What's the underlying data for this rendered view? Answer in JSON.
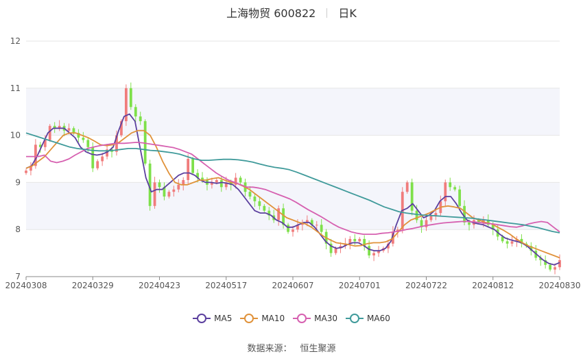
{
  "title": {
    "name": "上海物贸 600822",
    "period": "日K"
  },
  "legend": [
    {
      "name": "MA5",
      "color": "#5b3f9e"
    },
    {
      "name": "MA10",
      "color": "#e0923a"
    },
    {
      "name": "MA30",
      "color": "#d660b0"
    },
    {
      "name": "MA60",
      "color": "#3f9a9a"
    }
  ],
  "source": {
    "label": "数据来源：",
    "value": "恒生聚源"
  },
  "colors": {
    "up": "#f07c7c",
    "down": "#7ee04a",
    "band": "#f4f5fb",
    "grid": "#e6e6e6"
  },
  "chart_data": {
    "type": "candlestick",
    "ylim": [
      7,
      12
    ],
    "yticks": [
      7,
      8,
      9,
      10,
      11,
      12
    ],
    "xticks": [
      {
        "index": 0,
        "label": "20240308"
      },
      {
        "index": 14,
        "label": "20240329"
      },
      {
        "index": 28,
        "label": "20240423"
      },
      {
        "index": 42,
        "label": "20240517"
      },
      {
        "index": 56,
        "label": "20240607"
      },
      {
        "index": 70,
        "label": "20240701"
      },
      {
        "index": 84,
        "label": "20240722"
      },
      {
        "index": 98,
        "label": "20240812"
      },
      {
        "index": 112,
        "label": "20240830"
      }
    ],
    "closes": [
      9.25,
      9.35,
      9.8,
      9.75,
      9.9,
      10.2,
      10.15,
      10.2,
      10.1,
      10.15,
      10.05,
      9.95,
      9.9,
      9.75,
      9.3,
      9.45,
      9.55,
      9.7,
      9.65,
      10.0,
      10.3,
      11.0,
      10.6,
      10.4,
      10.3,
      9.4,
      8.5,
      9.0,
      8.9,
      8.7,
      8.8,
      8.85,
      8.95,
      9.05,
      9.5,
      9.2,
      9.1,
      9.05,
      8.95,
      9.0,
      9.05,
      8.9,
      9.0,
      8.95,
      9.1,
      9.0,
      8.8,
      8.7,
      8.6,
      8.5,
      8.4,
      8.3,
      8.2,
      8.45,
      8.1,
      7.95,
      8.0,
      8.1,
      8.15,
      8.2,
      8.1,
      8.1,
      7.95,
      7.7,
      7.5,
      7.6,
      7.65,
      7.7,
      7.8,
      7.75,
      7.8,
      7.65,
      7.45,
      7.5,
      7.55,
      7.6,
      7.7,
      7.95,
      8.0,
      8.8,
      9.0,
      8.4,
      8.2,
      8.05,
      8.2,
      8.3,
      8.35,
      8.6,
      9.0,
      8.9,
      8.85,
      8.5,
      8.15,
      8.1,
      8.2,
      8.15,
      8.2,
      8.1,
      8.0,
      7.85,
      7.75,
      7.7,
      7.75,
      7.8,
      7.7,
      7.65,
      7.55,
      7.4,
      7.35,
      7.25,
      7.15,
      7.2,
      7.35
    ],
    "ma": {
      "MA5": [
        9.3,
        9.35,
        9.55,
        9.8,
        10.05,
        10.15,
        10.15,
        10.15,
        10.05,
        9.95,
        9.75,
        9.65,
        9.6,
        9.58,
        9.6,
        9.65,
        9.75,
        10.1,
        10.4,
        10.45,
        10.3,
        9.7,
        9.1,
        8.8,
        8.85,
        8.85,
        8.95,
        9.05,
        9.15,
        9.2,
        9.2,
        9.15,
        9.05,
        9.0,
        9.0,
        8.98,
        9.0,
        8.98,
        8.95,
        8.85,
        8.7,
        8.55,
        8.4,
        8.35,
        8.35,
        8.3,
        8.2,
        8.15,
        8.05,
        8.05,
        8.1,
        8.15,
        8.15,
        8.05,
        7.9,
        7.75,
        7.65,
        7.6,
        7.62,
        7.68,
        7.72,
        7.72,
        7.66,
        7.58,
        7.55,
        7.55,
        7.6,
        7.75,
        8.1,
        8.4,
        8.45,
        8.55,
        8.4,
        8.25,
        8.3,
        8.4,
        8.6,
        8.7,
        8.7,
        8.55,
        8.35,
        8.2,
        8.15,
        8.12,
        8.1,
        8.05,
        8.0,
        7.9,
        7.82,
        7.78,
        7.75,
        7.72,
        7.65,
        7.55,
        7.45,
        7.35,
        7.28,
        7.25,
        7.3
      ],
      "MA10": [
        9.3,
        9.35,
        9.45,
        9.55,
        9.7,
        9.85,
        10.0,
        10.05,
        10.05,
        10.0,
        9.95,
        9.88,
        9.8,
        9.78,
        9.8,
        9.85,
        9.95,
        10.05,
        10.1,
        10.1,
        10.0,
        9.75,
        9.45,
        9.2,
        9.0,
        8.95,
        8.95,
        9.0,
        9.05,
        9.05,
        9.08,
        9.1,
        9.05,
        9.0,
        8.98,
        8.92,
        8.85,
        8.75,
        8.65,
        8.55,
        8.45,
        8.35,
        8.25,
        8.2,
        8.15,
        8.12,
        8.05,
        7.95,
        7.85,
        7.78,
        7.72,
        7.7,
        7.68,
        7.65,
        7.66,
        7.7,
        7.72,
        7.72,
        7.74,
        7.8,
        7.95,
        8.1,
        8.2,
        8.25,
        8.3,
        8.35,
        8.42,
        8.48,
        8.5,
        8.48,
        8.45,
        8.35,
        8.25,
        8.2,
        8.15,
        8.12,
        8.05,
        7.98,
        7.9,
        7.8,
        7.72,
        7.65,
        7.6,
        7.55,
        7.5,
        7.45,
        7.4
      ],
      "MA30": [
        9.55,
        9.55,
        9.55,
        9.58,
        9.45,
        9.42,
        9.45,
        9.5,
        9.58,
        9.65,
        9.72,
        9.75,
        9.78,
        9.8,
        9.82,
        9.83,
        9.83,
        9.84,
        9.85,
        9.84,
        9.82,
        9.8,
        9.78,
        9.76,
        9.74,
        9.7,
        9.65,
        9.6,
        9.5,
        9.4,
        9.3,
        9.2,
        9.12,
        9.05,
        9.0,
        8.95,
        8.9,
        8.9,
        8.88,
        8.85,
        8.8,
        8.75,
        8.7,
        8.65,
        8.58,
        8.5,
        8.42,
        8.35,
        8.28,
        8.2,
        8.12,
        8.05,
        8.0,
        7.95,
        7.92,
        7.9,
        7.9,
        7.9,
        7.92,
        7.93,
        7.95,
        7.97,
        8.0,
        8.02,
        8.05,
        8.08,
        8.1,
        8.12,
        8.14,
        8.15,
        8.16,
        8.17,
        8.17,
        8.16,
        8.15,
        8.13,
        8.12,
        8.1,
        8.08,
        8.06,
        8.05,
        8.08,
        8.12,
        8.15,
        8.17,
        8.15,
        8.05,
        7.95
      ],
      "MA60": [
        10.05,
        10.0,
        9.95,
        9.9,
        9.85,
        9.8,
        9.75,
        9.72,
        9.7,
        9.68,
        9.67,
        9.67,
        9.68,
        9.7,
        9.72,
        9.72,
        9.7,
        9.68,
        9.67,
        9.65,
        9.63,
        9.6,
        9.55,
        9.5,
        9.47,
        9.47,
        9.48,
        9.49,
        9.49,
        9.48,
        9.46,
        9.43,
        9.39,
        9.35,
        9.32,
        9.3,
        9.27,
        9.22,
        9.16,
        9.1,
        9.04,
        8.98,
        8.92,
        8.86,
        8.8,
        8.74,
        8.68,
        8.62,
        8.55,
        8.48,
        8.43,
        8.38,
        8.35,
        8.33,
        8.31,
        8.3,
        8.29,
        8.28,
        8.27,
        8.26,
        8.25,
        8.24,
        8.22,
        8.2,
        8.18,
        8.16,
        8.14,
        8.12,
        8.1,
        8.07,
        8.04,
        8.0,
        7.96,
        7.93
      ]
    }
  }
}
